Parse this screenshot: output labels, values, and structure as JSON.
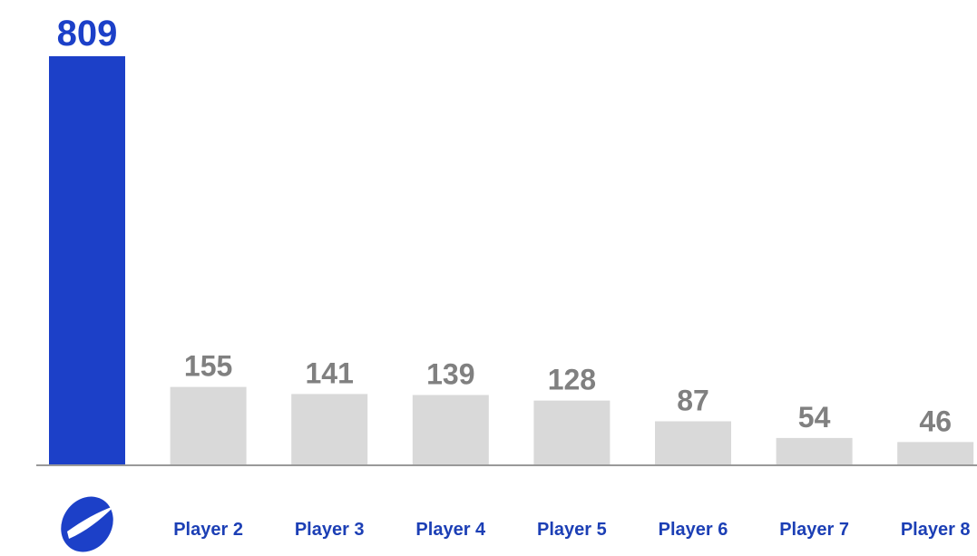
{
  "chart_data": {
    "type": "bar",
    "categories": [
      null,
      "Player 2",
      "Player 3",
      "Player 4",
      "Player 5",
      "Player 6",
      "Player 7",
      "Player 8"
    ],
    "values": [
      809,
      155,
      141,
      139,
      128,
      87,
      54,
      46
    ],
    "colors": [
      "#1c40c8",
      "#d9d9d9",
      "#d9d9d9",
      "#d9d9d9",
      "#d9d9d9",
      "#d9d9d9",
      "#d9d9d9",
      "#d9d9d9"
    ],
    "label_colors": [
      "#1c40c8",
      "#808080",
      "#808080",
      "#808080",
      "#808080",
      "#808080",
      "#808080",
      "#808080"
    ],
    "category_color": "#1c3fb5",
    "ylim": [
      0,
      809
    ]
  }
}
